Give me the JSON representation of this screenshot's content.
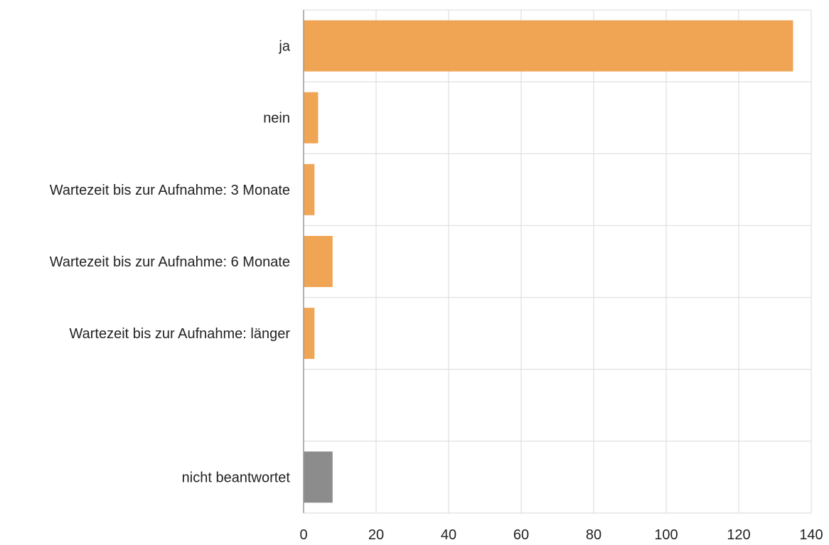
{
  "chart_data": {
    "type": "bar",
    "orientation": "horizontal",
    "title": "",
    "xlabel": "",
    "ylabel": "",
    "xlim": [
      0,
      140
    ],
    "x_ticks": [
      0,
      20,
      40,
      60,
      80,
      100,
      120,
      140
    ],
    "grid": true,
    "legend": "none",
    "categories": [
      "ja",
      "nein",
      "Wartezeit bis zur Aufnahme: 3 Monate",
      "Wartezeit bis zur Aufnahme: 6 Monate",
      "Wartezeit bis zur Aufnahme: länger",
      "",
      "nicht beantwortet"
    ],
    "values": [
      135,
      4,
      3,
      8,
      3,
      null,
      8
    ],
    "bar_colors": [
      "#f0a555",
      "#f0a555",
      "#f0a555",
      "#f0a555",
      "#f0a555",
      null,
      "#8c8c8c"
    ]
  }
}
